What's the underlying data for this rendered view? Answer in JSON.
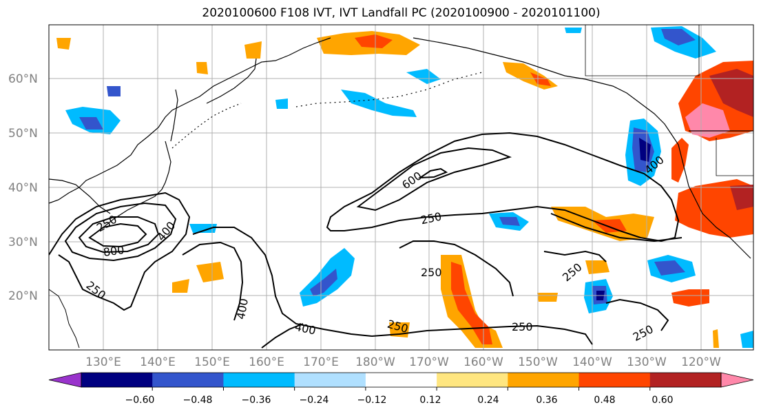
{
  "title": "2020100600 F108 IVT, IVT Landfall PC (2020100900 - 2020101100)",
  "map": {
    "lat_ticks": [
      "60°N",
      "50°N",
      "40°N",
      "30°N",
      "20°N"
    ],
    "lon_ticks": [
      "130°E",
      "140°E",
      "150°E",
      "160°E",
      "170°E",
      "180°W",
      "170°W",
      "160°W",
      "150°W",
      "140°W",
      "130°W",
      "120°W"
    ],
    "contour_labels": [
      "600",
      "250",
      "400",
      "800",
      "250",
      "400",
      "250",
      "250",
      "400",
      "250",
      "250",
      "250",
      "250",
      "400"
    ]
  },
  "colorbar": {
    "tick_labels": [
      "−0.60",
      "−0.48",
      "−0.36",
      "−0.24",
      "−0.12",
      "0.12",
      "0.24",
      "0.36",
      "0.48",
      "0.60"
    ],
    "colors": [
      "#9933cc",
      "#000080",
      "#3355cc",
      "#00bbff",
      "#b0e0ff",
      "#ffffff",
      "#ffe680",
      "#ffa500",
      "#ff4500",
      "#b22222",
      "#ff88aa"
    ]
  },
  "colors": {
    "coast": "#000000",
    "grid": "#b0b0b0",
    "contour": "#000000"
  }
}
